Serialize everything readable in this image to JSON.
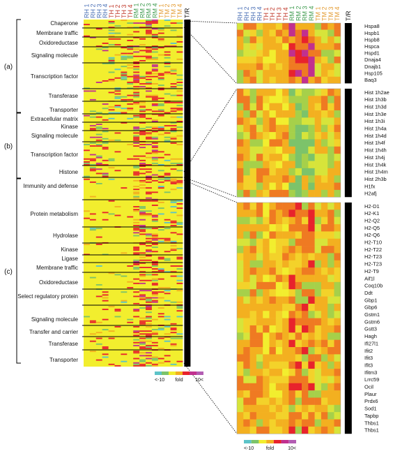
{
  "chart_data": {
    "type": "heatmap",
    "columns": [
      {
        "label": "RH 1",
        "color": "#4a6fb5"
      },
      {
        "label": "RH 2",
        "color": "#4a6fb5"
      },
      {
        "label": "RH 3",
        "color": "#4a6fb5"
      },
      {
        "label": "RH 4",
        "color": "#4a6fb5"
      },
      {
        "label": "TH 1",
        "color": "#c0392b"
      },
      {
        "label": "TH 2",
        "color": "#c0392b"
      },
      {
        "label": "TH 3",
        "color": "#c0392b"
      },
      {
        "label": "TH 4",
        "color": "#c0392b"
      },
      {
        "label": "RM 1",
        "color": "#3e9b4e"
      },
      {
        "label": "RM 2",
        "color": "#3e9b4e"
      },
      {
        "label": "RM 3",
        "color": "#3e9b4e"
      },
      {
        "label": "RM 4",
        "color": "#3e9b4e"
      },
      {
        "label": "TM 1",
        "color": "#e39a2f"
      },
      {
        "label": "TM 2",
        "color": "#e39a2f"
      },
      {
        "label": "TM 3",
        "color": "#e39a2f"
      },
      {
        "label": "TM 4",
        "color": "#e39a2f"
      },
      {
        "label": "T/R",
        "color": "#111111"
      }
    ],
    "sections": [
      {
        "label": "(a)",
        "categories": [
          "Chaperone",
          "Membrane traffic",
          "Oxidoreductase",
          "Signaling molecule",
          "Transcription factor",
          "Transferase",
          "Transporter"
        ]
      },
      {
        "label": "(b)",
        "categories": [
          "Extracellular matrix",
          "Kinase",
          "Signaling molecule",
          "Transcription factor",
          "Histone"
        ]
      },
      {
        "label": "(c)",
        "categories": [
          "Immunity and defense",
          "Protein metabolism",
          "Hydrolase",
          "Kinase",
          "Ligase",
          "Membrane traffic",
          "Oxidoreductase",
          "Select regulatory protein",
          "Signaling molecule",
          "Transfer and carrier",
          "Transferase",
          "Transporter"
        ]
      }
    ],
    "gene_groups": [
      {
        "name": "chaperone",
        "genes": [
          "Hspa8",
          "Hspb1",
          "Hspb8",
          "Hspca",
          "Hspd1",
          "Dnaja4",
          "Dnajb1",
          "Hsp105",
          "Baq3"
        ]
      },
      {
        "name": "histone",
        "genes": [
          "Hist 1h2ae",
          "Hist 1h3b",
          "Hist 1h3d",
          "Hist 1h3e",
          "Hist 1h3i",
          "Hist 1h4a",
          "Hist 1h4d",
          "Hist 1h4f",
          "Hist 1h4h",
          "Hist 1h4j",
          "Hist 1h4k",
          "Hist 1h4m",
          "Hist 2h3b",
          "H1fx",
          "H2afj"
        ]
      },
      {
        "name": "immunity",
        "genes": [
          "H2-D1",
          "H2-K1",
          "H2-Q2",
          "H2-Q5",
          "H2-Q6",
          "H2-T10",
          "H2-T22",
          "H2-T23",
          "H2-T23",
          "H2-T9",
          "Aif1l",
          "Coq10b",
          "Ddt",
          "Gbp1",
          "Gbp6",
          "Gstm1",
          "Gstm6",
          "Gstt3",
          "Hagh",
          "Ifi27l1",
          "Ifit2",
          "Ifit3",
          "Ifit3",
          "Ifitm3",
          "Lrrc59",
          "Ocil",
          "Plaur",
          "Prdx6",
          "Sod1",
          "Tapbp",
          "Thbs1",
          "Thbs1"
        ]
      }
    ],
    "legend": {
      "low_label": "<-10",
      "mid_label": "fold",
      "high_label": "10<",
      "colors": [
        "#5cc3c8",
        "#7cc36a",
        "#f2ee2e",
        "#f3b020",
        "#e8232c",
        "#c1308f",
        "#b35db3"
      ]
    },
    "background_color": "#f2ee2e"
  }
}
